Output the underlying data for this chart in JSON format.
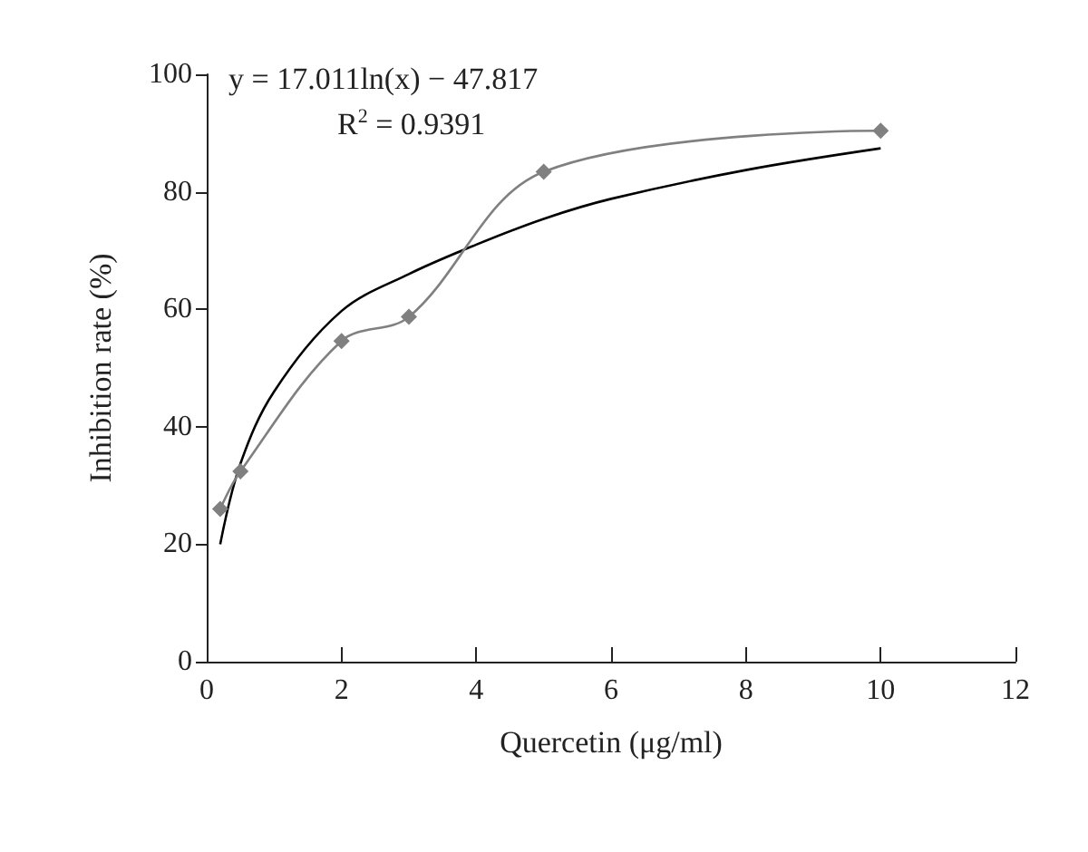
{
  "chart_data": {
    "type": "line",
    "xlabel": "Quercetin (μg/ml)",
    "ylabel": "Inhibition rate (%)",
    "xlim": [
      0,
      12
    ],
    "xticks": [
      0,
      2,
      4,
      6,
      8,
      10,
      12
    ],
    "ylim": [
      0,
      100
    ],
    "yticks": [
      0,
      20,
      40,
      60,
      80,
      100
    ],
    "grid": false,
    "annotations": [
      "y = 17.011ln(x) − 47.817",
      "R$^{2}$ = 0.9391"
    ],
    "series": [
      {
        "color": "#808080",
        "marker": "diamond",
        "x": [
          0.2,
          0.5,
          2,
          3,
          5,
          10
        ],
        "values": [
          26,
          32.4,
          54.6,
          58.7,
          83.4,
          90.4
        ]
      },
      {
        "type": "line",
        "color": "#000000",
        "marker": "none",
        "x": [
          0.2,
          0.5,
          1,
          2,
          3,
          4,
          5,
          6,
          8,
          10
        ],
        "values": [
          20,
          33.7,
          46,
          59.7,
          66,
          71,
          75.4,
          78.8,
          83.7,
          87.4
        ]
      }
    ]
  }
}
